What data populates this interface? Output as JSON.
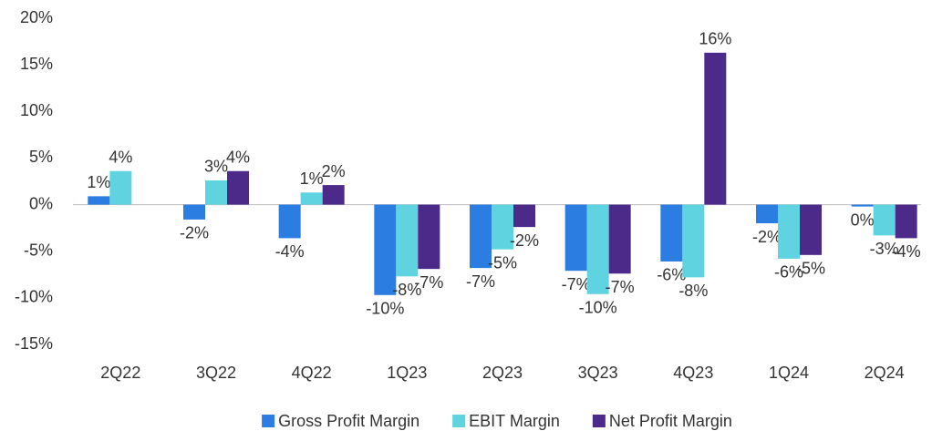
{
  "chart_data": {
    "type": "bar",
    "categories": [
      "2Q22",
      "3Q22",
      "4Q22",
      "1Q23",
      "2Q23",
      "3Q23",
      "4Q23",
      "1Q24",
      "2Q24"
    ],
    "series": [
      {
        "name": "Gross Profit Margin",
        "color": "#2b7de1",
        "values": [
          0.9,
          -1.6,
          -3.6,
          -9.7,
          -6.8,
          -7.1,
          -6.1,
          -2.0,
          -0.2
        ],
        "value_labels": [
          "1%",
          "-2%",
          "-4%",
          "-10%",
          "-7%",
          "-7%",
          "-6%",
          "-2%",
          "0%"
        ]
      },
      {
        "name": "EBIT Margin",
        "color": "#5fd3e0",
        "values": [
          3.6,
          2.6,
          1.3,
          -7.7,
          -4.8,
          -9.6,
          -7.8,
          -5.8,
          -3.3
        ],
        "value_labels": [
          "4%",
          "3%",
          "1%",
          "-8%",
          "-5%",
          "-10%",
          "-8%",
          "-6%",
          "-3%"
        ]
      },
      {
        "name": "Net Profit Margin",
        "color": "#4b2a8a",
        "values": [
          null,
          3.6,
          2.1,
          -6.9,
          -2.4,
          -7.4,
          16.3,
          -5.4,
          -3.6
        ],
        "value_labels": [
          null,
          "4%",
          "2%",
          "-7%",
          "-2%",
          "-7%",
          "16%",
          "-5%",
          "-4%"
        ]
      }
    ],
    "ylim": [
      -15,
      20
    ],
    "yticks": [
      {
        "value": -15,
        "label": "-15%"
      },
      {
        "value": -10,
        "label": "-10%"
      },
      {
        "value": -5,
        "label": "-5%"
      },
      {
        "value": 0,
        "label": "0%"
      },
      {
        "value": 5,
        "label": "5%"
      },
      {
        "value": 10,
        "label": "10%"
      },
      {
        "value": 15,
        "label": "15%"
      },
      {
        "value": 20,
        "label": "20%"
      }
    ],
    "grid": false,
    "legend": "bottom"
  }
}
